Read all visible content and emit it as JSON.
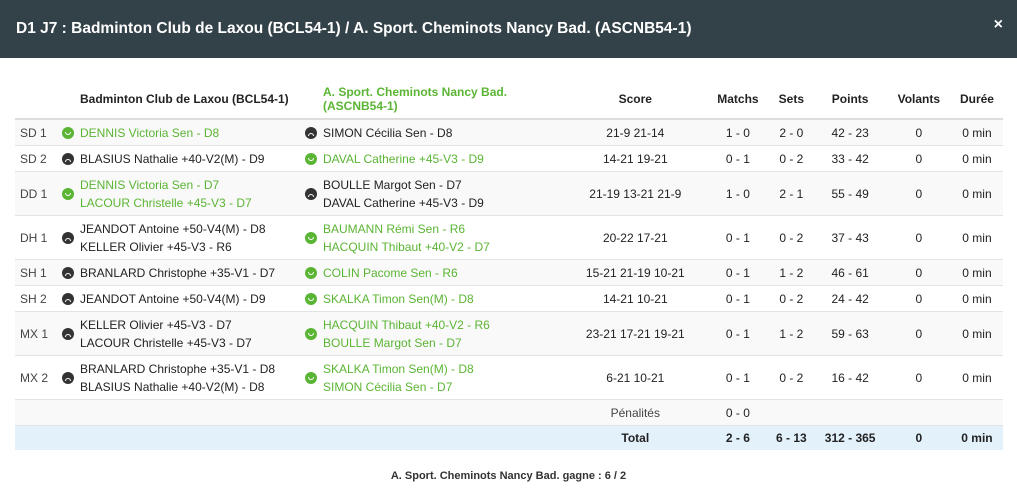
{
  "title": "D1 J7 : Badminton Club de Laxou (BCL54-1) / A. Sport. Cheminots Nancy Bad. (ASCNB54-1)",
  "close_label": "×",
  "colors": {
    "winner": "#5bb534",
    "header": "#334148",
    "total_row": "#e3f1fb"
  },
  "headers": {
    "team1": "Badminton Club de Laxou (BCL54-1)",
    "team2": "A. Sport. Cheminots Nancy Bad. (ASCNB54-1)",
    "score": "Score",
    "matchs": "Matchs",
    "sets": "Sets",
    "points": "Points",
    "volants": "Volants",
    "duree": "Durée"
  },
  "rows": [
    {
      "label": "SD 1",
      "winner": 1,
      "p1": [
        "DENNIS Victoria Sen - D8"
      ],
      "p2": [
        "SIMON Cécilia Sen - D8"
      ],
      "score": "21-9 21-14",
      "matchs": "1 - 0",
      "sets": "2 - 0",
      "points": "42 - 23",
      "volants": "0",
      "duree": "0 min"
    },
    {
      "label": "SD 2",
      "winner": 2,
      "p1": [
        "BLASIUS Nathalie +40-V2(M) - D9"
      ],
      "p2": [
        "DAVAL Catherine +45-V3 - D9"
      ],
      "score": "14-21 19-21",
      "matchs": "0 - 1",
      "sets": "0 - 2",
      "points": "33 - 42",
      "volants": "0",
      "duree": "0 min"
    },
    {
      "label": "DD 1",
      "winner": 1,
      "p1": [
        "DENNIS Victoria Sen - D7",
        "LACOUR Christelle +45-V3 - D7"
      ],
      "p2": [
        "BOULLE Margot Sen - D7",
        "DAVAL Catherine +45-V3 - D9"
      ],
      "score": "21-19 13-21 21-9",
      "matchs": "1 - 0",
      "sets": "2 - 1",
      "points": "55 - 49",
      "volants": "0",
      "duree": "0 min"
    },
    {
      "label": "DH 1",
      "winner": 2,
      "p1": [
        "JEANDOT Antoine +50-V4(M) - D8",
        "KELLER Olivier +45-V3 - R6"
      ],
      "p2": [
        "BAUMANN Rémi Sen - R6",
        "HACQUIN Thibaut +40-V2 - D7"
      ],
      "score": "20-22 17-21",
      "matchs": "0 - 1",
      "sets": "0 - 2",
      "points": "37 - 43",
      "volants": "0",
      "duree": "0 min"
    },
    {
      "label": "SH 1",
      "winner": 2,
      "p1": [
        "BRANLARD Christophe +35-V1 - D7"
      ],
      "p2": [
        "COLIN Pacome Sen - R6"
      ],
      "score": "15-21 21-19 10-21",
      "matchs": "0 - 1",
      "sets": "1 - 2",
      "points": "46 - 61",
      "volants": "0",
      "duree": "0 min"
    },
    {
      "label": "SH 2",
      "winner": 2,
      "p1": [
        "JEANDOT Antoine +50-V4(M) - D9"
      ],
      "p2": [
        "SKALKA Timon Sen(M) - D8"
      ],
      "score": "14-21 10-21",
      "matchs": "0 - 1",
      "sets": "0 - 2",
      "points": "24 - 42",
      "volants": "0",
      "duree": "0 min"
    },
    {
      "label": "MX 1",
      "winner": 2,
      "p1": [
        "KELLER Olivier +45-V3 - D7",
        "LACOUR Christelle +45-V3 - D7"
      ],
      "p2": [
        "HACQUIN Thibaut +40-V2 - R6",
        "BOULLE Margot Sen - D7"
      ],
      "score": "23-21 17-21 19-21",
      "matchs": "0 - 1",
      "sets": "1 - 2",
      "points": "59 - 63",
      "volants": "0",
      "duree": "0 min"
    },
    {
      "label": "MX 2",
      "winner": 2,
      "p1": [
        "BRANLARD Christophe +35-V1 - D8",
        "BLASIUS Nathalie +40-V2(M) - D8"
      ],
      "p2": [
        "SKALKA Timon Sen(M) - D8",
        "SIMON Cécilia Sen - D7"
      ],
      "score": "6-21 10-21",
      "matchs": "0 - 1",
      "sets": "0 - 2",
      "points": "16 - 42",
      "volants": "0",
      "duree": "0 min"
    }
  ],
  "penalties": {
    "label": "Pénalités",
    "value": "0 - 0"
  },
  "total": {
    "label": "Total",
    "matchs": "2 - 6",
    "sets": "6 - 13",
    "points": "312 - 365",
    "volants": "0",
    "duree": "0 min"
  },
  "result": "A. Sport. Cheminots Nancy Bad. gagne : 6 / 2"
}
